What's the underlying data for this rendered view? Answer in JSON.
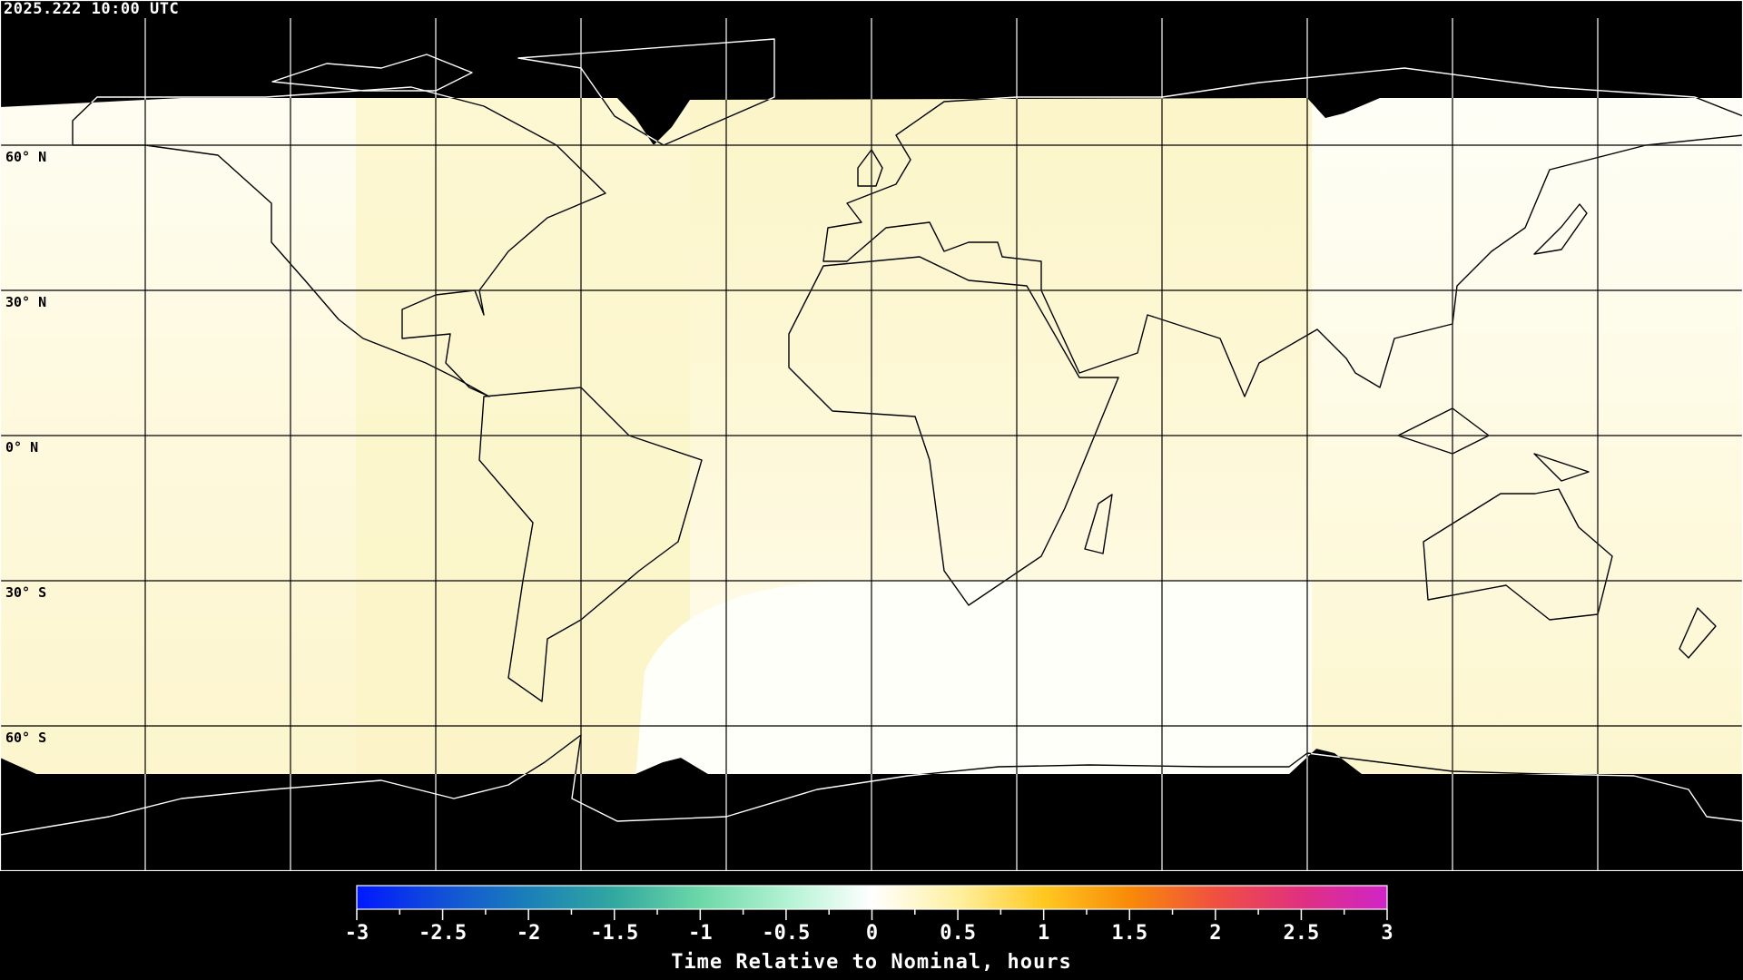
{
  "header": {
    "timestamp": "2025.222 10:00 UTC"
  },
  "map": {
    "latitude_labels": [
      "60° N",
      "30° N",
      "0° N",
      "30° S",
      "60° S"
    ],
    "latitude_values": [
      60,
      30,
      0,
      -30,
      -60
    ],
    "longitude_grid_spacing_deg": 30,
    "projection": "equirectangular",
    "colors": {
      "no_data": "#000000",
      "land_outline_on_data": "#000000",
      "land_outline_on_no_data": "#ffffff",
      "grid": "#000000"
    }
  },
  "colorbar": {
    "title": "Time Relative to Nominal, hours",
    "min": -3,
    "max": 3,
    "tick_labels": [
      "-3",
      "-2.5",
      "-2",
      "-1.5",
      "-1",
      "-0.5",
      "0",
      "0.5",
      "1",
      "1.5",
      "2",
      "2.5",
      "3"
    ],
    "minor_tick_step": 0.25,
    "color_stops": [
      {
        "value": -3,
        "color": "#0018ff"
      },
      {
        "value": -2.5,
        "color": "#1250d8"
      },
      {
        "value": -2,
        "color": "#1a80b8"
      },
      {
        "value": -1.5,
        "color": "#32a8a0"
      },
      {
        "value": -1,
        "color": "#6cd8a8"
      },
      {
        "value": -0.5,
        "color": "#b2f2d2"
      },
      {
        "value": 0,
        "color": "#ffffff"
      },
      {
        "value": 0.5,
        "color": "#fff0a0"
      },
      {
        "value": 1,
        "color": "#ffc820"
      },
      {
        "value": 1.5,
        "color": "#f88a08"
      },
      {
        "value": 2,
        "color": "#f05040"
      },
      {
        "value": 2.5,
        "color": "#e03080"
      },
      {
        "value": 3,
        "color": "#d024c8"
      }
    ]
  }
}
